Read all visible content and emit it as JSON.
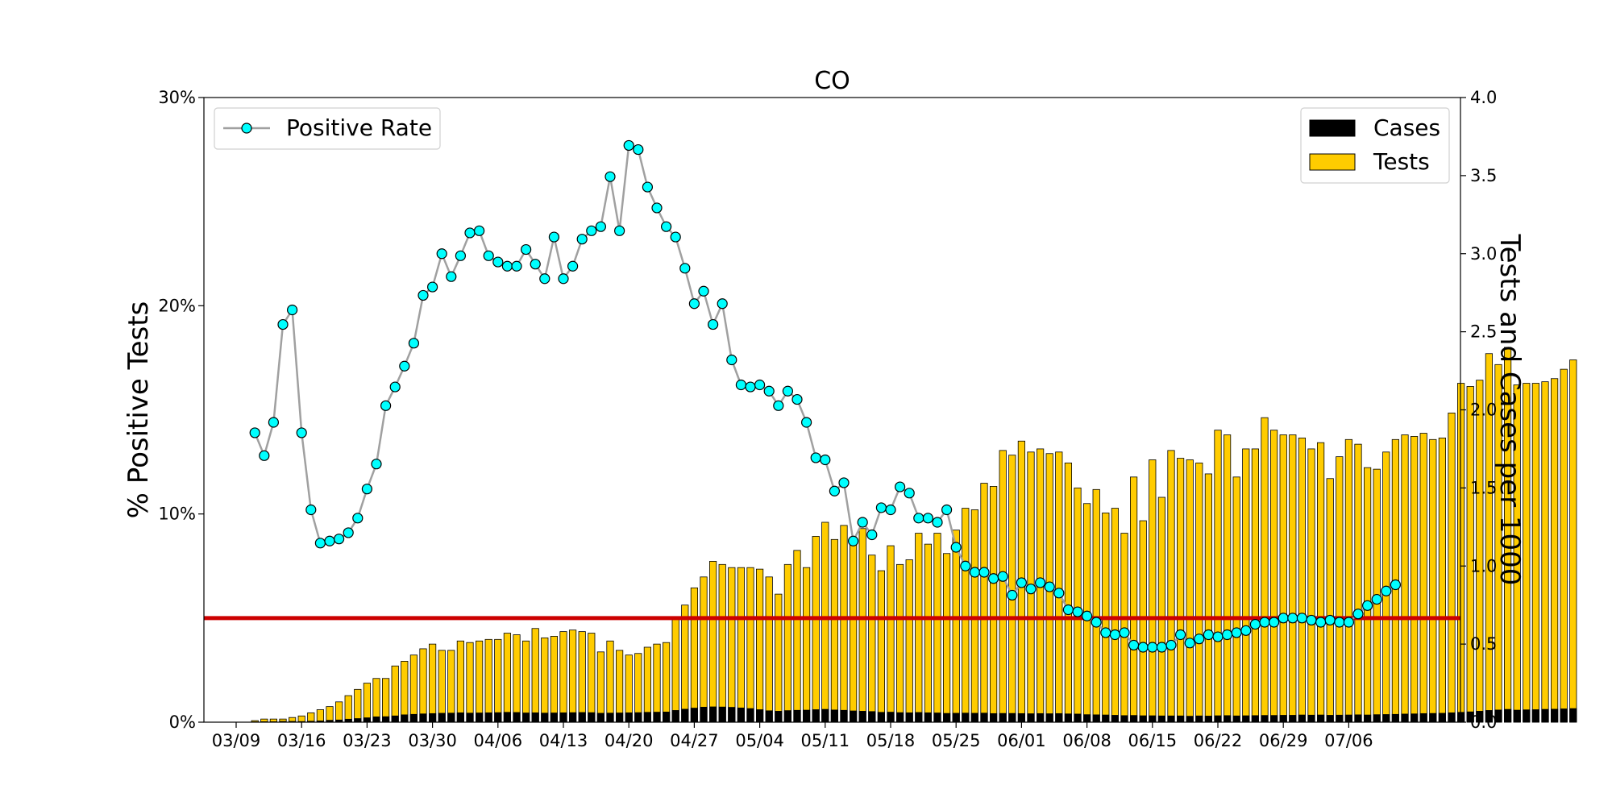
{
  "chart_data": {
    "type": "bar+line",
    "title": "CO",
    "ylabel_left": "% Positive Tests",
    "ylabel_right": "Tests and Cases per 1000",
    "ylim_left": [
      0,
      30
    ],
    "ylim_right": [
      0,
      4.0
    ],
    "left_ticks": [
      "0%",
      "10%",
      "20%",
      "30%"
    ],
    "right_ticks": [
      "0.0",
      "0.5",
      "1.0",
      "1.5",
      "2.0",
      "2.5",
      "3.0",
      "3.5",
      "4.0"
    ],
    "x_start": "03/09",
    "x_ticks": [
      "03/09",
      "03/16",
      "03/23",
      "03/30",
      "04/06",
      "04/13",
      "04/20",
      "04/27",
      "05/04",
      "05/11",
      "05/18",
      "05/25",
      "06/01",
      "06/08",
      "06/15",
      "06/22",
      "06/29",
      "07/06"
    ],
    "threshold_pct": 5,
    "threshold_color": "#cc0000",
    "grid": false,
    "legend_left": {
      "position": "top-left",
      "label": "Positive Rate",
      "line_color": "#a0a0a0",
      "marker_color": "#00ffff"
    },
    "legend_right": {
      "position": "top-right",
      "labels": [
        "Cases",
        "Tests"
      ]
    },
    "series": [
      {
        "name": "Tests",
        "axis": "right",
        "color": "#ffcc00",
        "start_day": 2,
        "values": [
          0.01,
          0.02,
          0.02,
          0.02,
          0.03,
          0.04,
          0.06,
          0.08,
          0.1,
          0.13,
          0.17,
          0.21,
          0.25,
          0.28,
          0.28,
          0.36,
          0.39,
          0.43,
          0.47,
          0.5,
          0.46,
          0.46,
          0.52,
          0.51,
          0.52,
          0.53,
          0.53,
          0.57,
          0.56,
          0.52,
          0.6,
          0.54,
          0.55,
          0.58,
          0.59,
          0.58,
          0.57,
          0.45,
          0.52,
          0.46,
          0.43,
          0.44,
          0.48,
          0.5,
          0.51,
          0.67,
          0.75,
          0.86,
          0.93,
          1.03,
          1.01,
          0.99,
          0.99,
          0.99,
          0.98,
          0.93,
          0.82,
          1.01,
          1.1,
          0.99,
          1.19,
          1.28,
          1.17,
          1.26,
          1.17,
          1.24,
          1.07,
          0.97,
          1.13,
          1.01,
          1.04,
          1.21,
          1.14,
          1.21,
          1.08,
          1.23,
          1.37,
          1.36,
          1.53,
          1.51,
          1.74,
          1.71,
          1.8,
          1.73,
          1.75,
          1.72,
          1.73,
          1.66,
          1.5,
          1.4,
          1.49,
          1.34,
          1.37,
          1.21,
          1.57,
          1.29,
          1.68,
          1.44,
          1.74,
          1.69,
          1.68,
          1.66,
          1.59,
          1.87,
          1.84,
          1.57,
          1.75,
          1.75,
          1.95,
          1.87,
          1.84,
          1.84,
          1.82,
          1.75,
          1.79,
          1.56,
          1.7,
          1.81,
          1.78,
          1.63,
          1.62,
          1.73,
          1.81,
          1.84,
          1.83,
          1.85,
          1.81,
          1.82,
          1.98,
          2.17,
          2.15,
          2.19,
          2.36,
          2.29,
          2.4,
          2.16,
          2.17,
          2.17,
          2.18,
          2.2,
          2.26,
          2.32
        ],
        "values_note": ""
      },
      {
        "name": "Cases",
        "axis": "right",
        "color": "#000000",
        "start_day": 2,
        "values": [
          0.002,
          0.003,
          0.003,
          0.005,
          0.005,
          0.004,
          0.006,
          0.008,
          0.012,
          0.014,
          0.019,
          0.023,
          0.028,
          0.034,
          0.035,
          0.04,
          0.047,
          0.05,
          0.053,
          0.055,
          0.057,
          0.058,
          0.06,
          0.058,
          0.059,
          0.06,
          0.061,
          0.063,
          0.062,
          0.059,
          0.06,
          0.058,
          0.059,
          0.06,
          0.061,
          0.062,
          0.061,
          0.057,
          0.058,
          0.059,
          0.06,
          0.061,
          0.063,
          0.064,
          0.065,
          0.075,
          0.083,
          0.09,
          0.096,
          0.098,
          0.097,
          0.095,
          0.091,
          0.087,
          0.08,
          0.073,
          0.07,
          0.074,
          0.076,
          0.077,
          0.08,
          0.082,
          0.078,
          0.076,
          0.072,
          0.07,
          0.068,
          0.063,
          0.064,
          0.061,
          0.06,
          0.062,
          0.06,
          0.059,
          0.056,
          0.057,
          0.058,
          0.057,
          0.058,
          0.055,
          0.056,
          0.056,
          0.055,
          0.054,
          0.055,
          0.054,
          0.055,
          0.053,
          0.052,
          0.048,
          0.047,
          0.046,
          0.044,
          0.042,
          0.043,
          0.041,
          0.041,
          0.04,
          0.04,
          0.04,
          0.038,
          0.04,
          0.039,
          0.041,
          0.042,
          0.04,
          0.041,
          0.042,
          0.043,
          0.043,
          0.044,
          0.044,
          0.046,
          0.045,
          0.046,
          0.044,
          0.045,
          0.046,
          0.047,
          0.046,
          0.048,
          0.049,
          0.05,
          0.052,
          0.053,
          0.055,
          0.056,
          0.057,
          0.06,
          0.063,
          0.066,
          0.07,
          0.075,
          0.078,
          0.082,
          0.077,
          0.079,
          0.08,
          0.082,
          0.083,
          0.085,
          0.087
        ],
        "values_note": ""
      },
      {
        "name": "Positive Rate",
        "axis": "left",
        "color": "#00ffff",
        "start_day": 2,
        "values": [
          13.9,
          12.8,
          14.4,
          19.1,
          19.8,
          13.9,
          10.2,
          8.6,
          8.7,
          8.8,
          9.1,
          9.8,
          11.2,
          12.4,
          15.2,
          16.1,
          17.1,
          18.2,
          20.5,
          20.9,
          22.5,
          21.4,
          22.4,
          23.5,
          23.6,
          22.4,
          22.1,
          21.9,
          21.9,
          22.7,
          22.0,
          21.3,
          23.3,
          21.3,
          21.9,
          23.2,
          23.6,
          23.8,
          26.2,
          23.6,
          27.7,
          27.5,
          25.7,
          24.7,
          23.8,
          23.3,
          21.8,
          20.1,
          20.7,
          19.1,
          20.1,
          17.4,
          16.2,
          16.1,
          16.2,
          15.9,
          15.2,
          15.9,
          15.5,
          14.4,
          12.7,
          12.6,
          11.1,
          11.5,
          8.7,
          9.6,
          9.0,
          10.3,
          10.2,
          11.3,
          11.0,
          9.8,
          9.8,
          9.6,
          10.2,
          8.4,
          7.5,
          7.2,
          7.2,
          6.9,
          7.0,
          6.1,
          6.7,
          6.4,
          6.7,
          6.5,
          6.2,
          5.4,
          5.3,
          5.1,
          4.8,
          4.3,
          4.2,
          4.3,
          3.7,
          3.6,
          3.6,
          3.6,
          3.7,
          4.2,
          3.8,
          4.0,
          4.2,
          4.1,
          4.2,
          4.3,
          4.4,
          4.7,
          4.8,
          4.8,
          5.0,
          5.0,
          5.0,
          4.9,
          4.8,
          4.9,
          4.8,
          4.8,
          5.2,
          5.6,
          5.9,
          6.3,
          6.6
        ],
        "values_note": ""
      }
    ]
  }
}
